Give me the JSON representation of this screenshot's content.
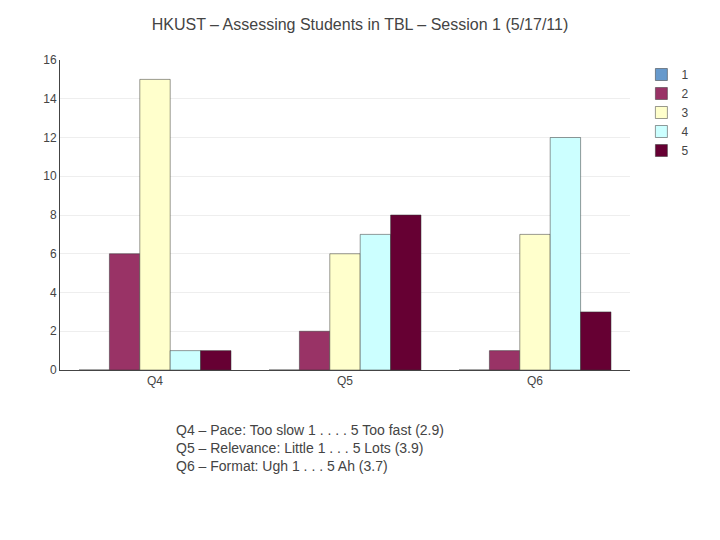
{
  "chart_data": {
    "type": "bar",
    "title": "HKUST – Assessing Students in TBL – Session 1 (5/17/11)",
    "categories": [
      "Q4",
      "Q5",
      "Q6"
    ],
    "series": [
      {
        "name": "1",
        "color": "#6699CC",
        "values": [
          0,
          0,
          0
        ]
      },
      {
        "name": "2",
        "color": "#993366",
        "values": [
          6,
          2,
          1
        ]
      },
      {
        "name": "3",
        "color": "#FFFFCC",
        "values": [
          15,
          6,
          7
        ]
      },
      {
        "name": "4",
        "color": "#CCFFFF",
        "values": [
          1,
          7,
          12
        ]
      },
      {
        "name": "5",
        "color": "#660033",
        "values": [
          1,
          8,
          3
        ]
      }
    ],
    "ylim": [
      0,
      16
    ],
    "yticks": [
      0,
      2,
      4,
      6,
      8,
      10,
      12,
      14,
      16
    ],
    "grid": true,
    "legend": "upper right",
    "annotations": [
      "Q4 – Pace: Too slow 1 . . . . 5 Too fast (2.9)",
      "Q5 – Relevance: Little 1 . . . 5 Lots (3.9)",
      "Q6 – Format: Ugh 1 . . . 5 Ah (3.7)"
    ]
  }
}
